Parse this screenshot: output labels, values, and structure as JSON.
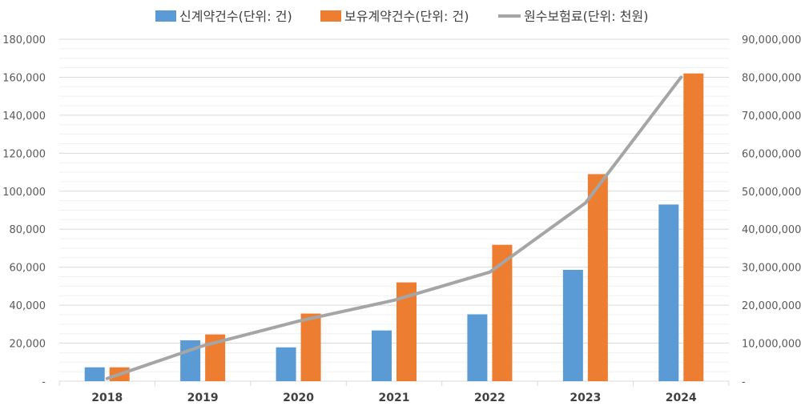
{
  "chart_data": {
    "type": "bar+line",
    "categories": [
      "2018",
      "2019",
      "2020",
      "2021",
      "2022",
      "2023",
      "2024"
    ],
    "series": [
      {
        "name": "신계약건수(단위: 건)",
        "type": "bar",
        "axis": "left",
        "color": "#5B9BD5",
        "values": [
          7300,
          21500,
          17800,
          26700,
          35200,
          58600,
          93000
        ]
      },
      {
        "name": "보유계약건수(단위: 건)",
        "type": "bar",
        "axis": "left",
        "color": "#ED7D31",
        "values": [
          7300,
          24600,
          35600,
          52000,
          71800,
          109000,
          162000
        ]
      },
      {
        "name": "원수보험료(단위: 천원)",
        "type": "line",
        "axis": "right",
        "color": "#A5A5A5",
        "values": [
          700000,
          9300000,
          15800000,
          21300000,
          28700000,
          46900000,
          80000000
        ]
      }
    ],
    "y_left": {
      "ylim": [
        0,
        180000
      ],
      "ticks": [
        "-",
        "20,000",
        "40,000",
        "60,000",
        "80,000",
        "100,000",
        "120,000",
        "140,000",
        "160,000",
        "180,000"
      ]
    },
    "y_right": {
      "ylim": [
        0,
        90000000
      ],
      "ticks": [
        "-",
        "10,000,000",
        "20,000,000",
        "30,000,000",
        "40,000,000",
        "50,000,000",
        "60,000,000",
        "70,000,000",
        "80,000,000",
        "90,000,000"
      ]
    },
    "legend_position": "top-center",
    "grid": true
  }
}
